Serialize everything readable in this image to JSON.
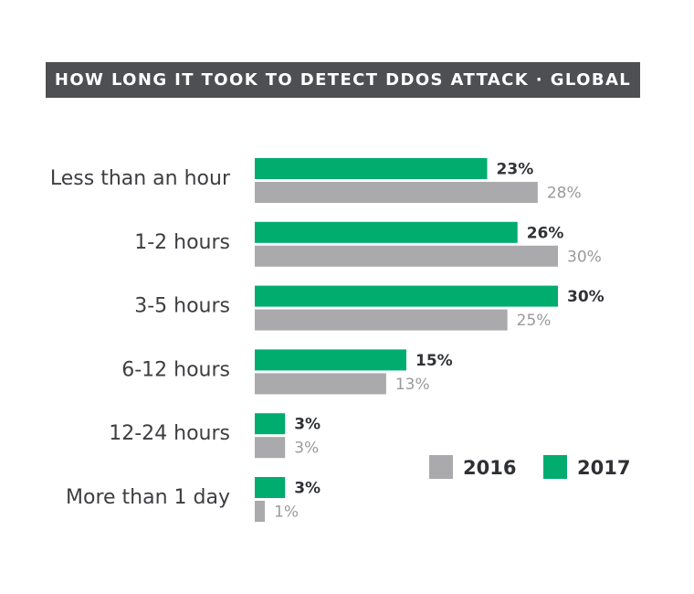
{
  "title": "HOW LONG IT TOOK TO DETECT DDOS ATTACK · GLOBAL",
  "colors": {
    "2016": "#aaaaad",
    "2017": "#00ad6e",
    "title_bg": "#4d4f53"
  },
  "chart_data": {
    "type": "bar",
    "orientation": "horizontal",
    "title": "HOW LONG IT TOOK TO DETECT DDOS ATTACK · GLOBAL",
    "categories": [
      "Less than an hour",
      "1-2 hours",
      "3-5 hours",
      "6-12 hours",
      "12-24 hours",
      "More than 1 day"
    ],
    "series": [
      {
        "name": "2017",
        "values": [
          23,
          26,
          30,
          15,
          3,
          3
        ],
        "labels": [
          "23%",
          "26%",
          "30%",
          "15%",
          "3%",
          "3%"
        ]
      },
      {
        "name": "2016",
        "values": [
          28,
          30,
          25,
          13,
          3,
          1
        ],
        "labels": [
          "28%",
          "30%",
          "25%",
          "13%",
          "3%",
          "1%"
        ]
      }
    ],
    "legend": {
      "position": "bottom-right",
      "entries": [
        "2016",
        "2017"
      ]
    },
    "xlim": [
      0,
      30
    ],
    "grid": false
  }
}
